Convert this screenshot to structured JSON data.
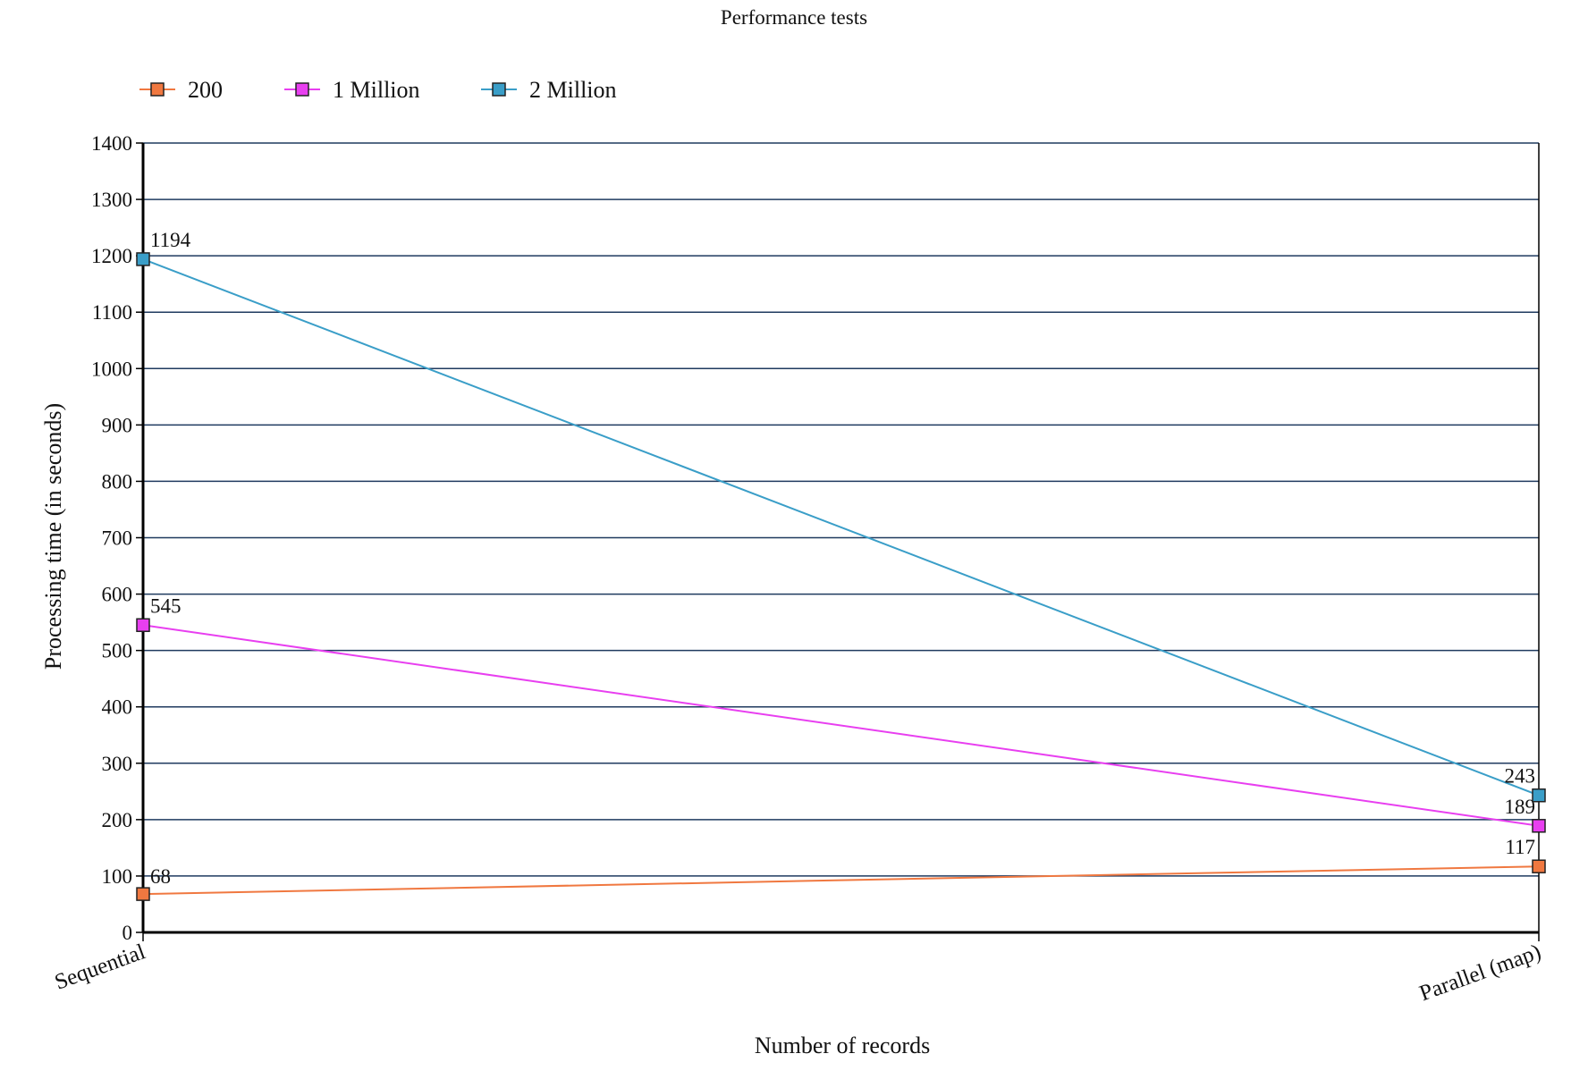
{
  "chart_data": {
    "type": "line",
    "title": "Performance tests",
    "xlabel": "Number of records",
    "ylabel": "Processing time (in seconds)",
    "categories": [
      "Sequential",
      "Parallel (map)"
    ],
    "ylim": [
      0,
      1400
    ],
    "yticks": [
      0,
      100,
      200,
      300,
      400,
      500,
      600,
      700,
      800,
      900,
      1000,
      1100,
      1200,
      1300,
      1400
    ],
    "grid": true,
    "legend_position": "top-left",
    "series": [
      {
        "name": "200",
        "values": [
          68,
          117
        ],
        "color": "#f07840",
        "data_labels": [
          "68",
          "117"
        ]
      },
      {
        "name": "1 Million",
        "values": [
          545,
          189
        ],
        "color": "#e83ff0",
        "data_labels": [
          "545",
          "189"
        ]
      },
      {
        "name": "2 Million",
        "values": [
          1194,
          243
        ],
        "color": "#3a9ec8",
        "data_labels": [
          "1194",
          "243"
        ]
      }
    ],
    "colors": {
      "gridline": "#1f3a5f",
      "axis": "#000000",
      "text": "#111111"
    }
  }
}
